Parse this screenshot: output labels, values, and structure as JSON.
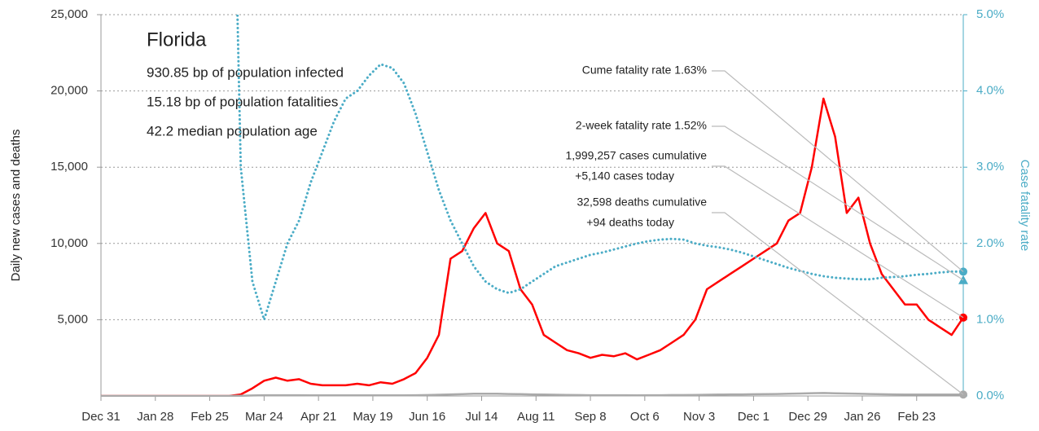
{
  "chart_data": {
    "type": "line",
    "title": "Florida",
    "info_lines": [
      "930.85 bp of population infected",
      "15.18 bp of population fatalities",
      "42.2 median population age"
    ],
    "ylabel": "Daily new cases and deaths",
    "y2label": "Case fatality rate",
    "xlim": [
      0,
      444
    ],
    "xticks": [
      {
        "value": 0,
        "label": "Dec 31"
      },
      {
        "value": 28,
        "label": "Jan 28"
      },
      {
        "value": 56,
        "label": "Feb 25"
      },
      {
        "value": 84,
        "label": "Mar 24"
      },
      {
        "value": 112,
        "label": "Apr 21"
      },
      {
        "value": 140,
        "label": "May 19"
      },
      {
        "value": 168,
        "label": "Jun 16"
      },
      {
        "value": 196,
        "label": "Jul 14"
      },
      {
        "value": 224,
        "label": "Aug 11"
      },
      {
        "value": 252,
        "label": "Sep 8"
      },
      {
        "value": 280,
        "label": "Oct 6"
      },
      {
        "value": 308,
        "label": "Nov 3"
      },
      {
        "value": 336,
        "label": "Dec 1"
      },
      {
        "value": 364,
        "label": "Dec 29"
      },
      {
        "value": 392,
        "label": "Jan 26"
      },
      {
        "value": 420,
        "label": "Feb 23"
      }
    ],
    "ylim": [
      0,
      25000
    ],
    "yticks": [
      {
        "value": 5000,
        "label": "5,000"
      },
      {
        "value": 10000,
        "label": "10,000"
      },
      {
        "value": 15000,
        "label": "15,000"
      },
      {
        "value": 20000,
        "label": "20,000"
      },
      {
        "value": 25000,
        "label": "25,000"
      }
    ],
    "y2lim": [
      0,
      5
    ],
    "y2ticks": [
      {
        "value": 0,
        "label": "0.0%"
      },
      {
        "value": 1,
        "label": "1.0%"
      },
      {
        "value": 2,
        "label": "2.0%"
      },
      {
        "value": 3,
        "label": "3.0%"
      },
      {
        "value": 4,
        "label": "4.0%"
      },
      {
        "value": 5,
        "label": "5.0%"
      }
    ],
    "grid": true,
    "x": [
      0,
      6,
      12,
      18,
      24,
      30,
      36,
      42,
      48,
      54,
      60,
      66,
      72,
      78,
      84,
      90,
      96,
      102,
      108,
      114,
      120,
      126,
      132,
      138,
      144,
      150,
      156,
      162,
      168,
      174,
      180,
      186,
      192,
      198,
      204,
      210,
      216,
      222,
      228,
      234,
      240,
      246,
      252,
      258,
      264,
      270,
      276,
      282,
      288,
      294,
      300,
      306,
      312,
      318,
      324,
      330,
      336,
      342,
      348,
      354,
      360,
      366,
      372,
      378,
      384,
      390,
      396,
      402,
      408,
      414,
      420,
      426,
      432,
      438,
      444
    ],
    "series": [
      {
        "color": "#ff0000",
        "style": "solid",
        "values": [
          0,
          0,
          0,
          0,
          0,
          0,
          0,
          0,
          0,
          0,
          0,
          0,
          100,
          500,
          1000,
          1200,
          1000,
          1100,
          800,
          700,
          700,
          700,
          800,
          700,
          900,
          800,
          1100,
          1500,
          2500,
          4000,
          9000,
          9500,
          11000,
          12000,
          10000,
          9500,
          7000,
          6000,
          4000,
          3500,
          3000,
          2800,
          2500,
          2700,
          2600,
          2800,
          2400,
          2700,
          3000,
          3500,
          4000,
          5000,
          7000,
          7500,
          8000,
          8500,
          9000,
          9500,
          10000,
          11500,
          12000,
          15000,
          19500,
          17000,
          12000,
          13000,
          10000,
          8000,
          7000,
          6000,
          6000,
          5000,
          4500,
          4000,
          5140
        ]
      },
      {
        "color": "#aaaaaa",
        "style": "solid",
        "values": [
          0,
          0,
          0,
          0,
          0,
          0,
          0,
          0,
          0,
          0,
          0,
          0,
          10,
          30,
          50,
          50,
          50,
          50,
          40,
          40,
          40,
          40,
          40,
          40,
          40,
          40,
          40,
          50,
          60,
          80,
          100,
          120,
          150,
          150,
          150,
          130,
          120,
          100,
          90,
          80,
          70,
          60,
          50,
          50,
          50,
          50,
          40,
          50,
          50,
          60,
          60,
          70,
          80,
          90,
          100,
          100,
          110,
          120,
          130,
          150,
          160,
          180,
          190,
          170,
          160,
          150,
          130,
          110,
          100,
          90,
          90,
          90,
          90,
          90,
          94
        ]
      },
      {
        "color": "#4bacc6",
        "style": "dotted",
        "axis": "y2",
        "values": [
          null,
          null,
          null,
          null,
          null,
          null,
          null,
          null,
          null,
          null,
          null,
          10,
          3.0,
          1.5,
          1.0,
          1.5,
          2.0,
          2.3,
          2.8,
          3.2,
          3.6,
          3.9,
          4.0,
          4.2,
          4.35,
          4.3,
          4.1,
          3.7,
          3.2,
          2.7,
          2.3,
          2.0,
          1.7,
          1.5,
          1.4,
          1.35,
          1.4,
          1.5,
          1.6,
          1.7,
          1.75,
          1.8,
          1.85,
          1.88,
          1.92,
          1.96,
          2.0,
          2.03,
          2.05,
          2.06,
          2.05,
          2.0,
          1.97,
          1.95,
          1.92,
          1.88,
          1.83,
          1.78,
          1.73,
          1.68,
          1.64,
          1.6,
          1.57,
          1.55,
          1.54,
          1.53,
          1.53,
          1.55,
          1.56,
          1.57,
          1.59,
          1.6,
          1.62,
          1.63,
          1.63
        ]
      }
    ],
    "cume_fatality_rate": 1.63,
    "two_week_fatality_rate": 1.52,
    "annotations": [
      "Cume fatality rate 1.63%",
      "2-week fatality rate 1.52%",
      "1,999,257 cases cumulative",
      "+5,140 cases today",
      "32,598 deaths cumulative",
      "+94 deaths today"
    ]
  }
}
